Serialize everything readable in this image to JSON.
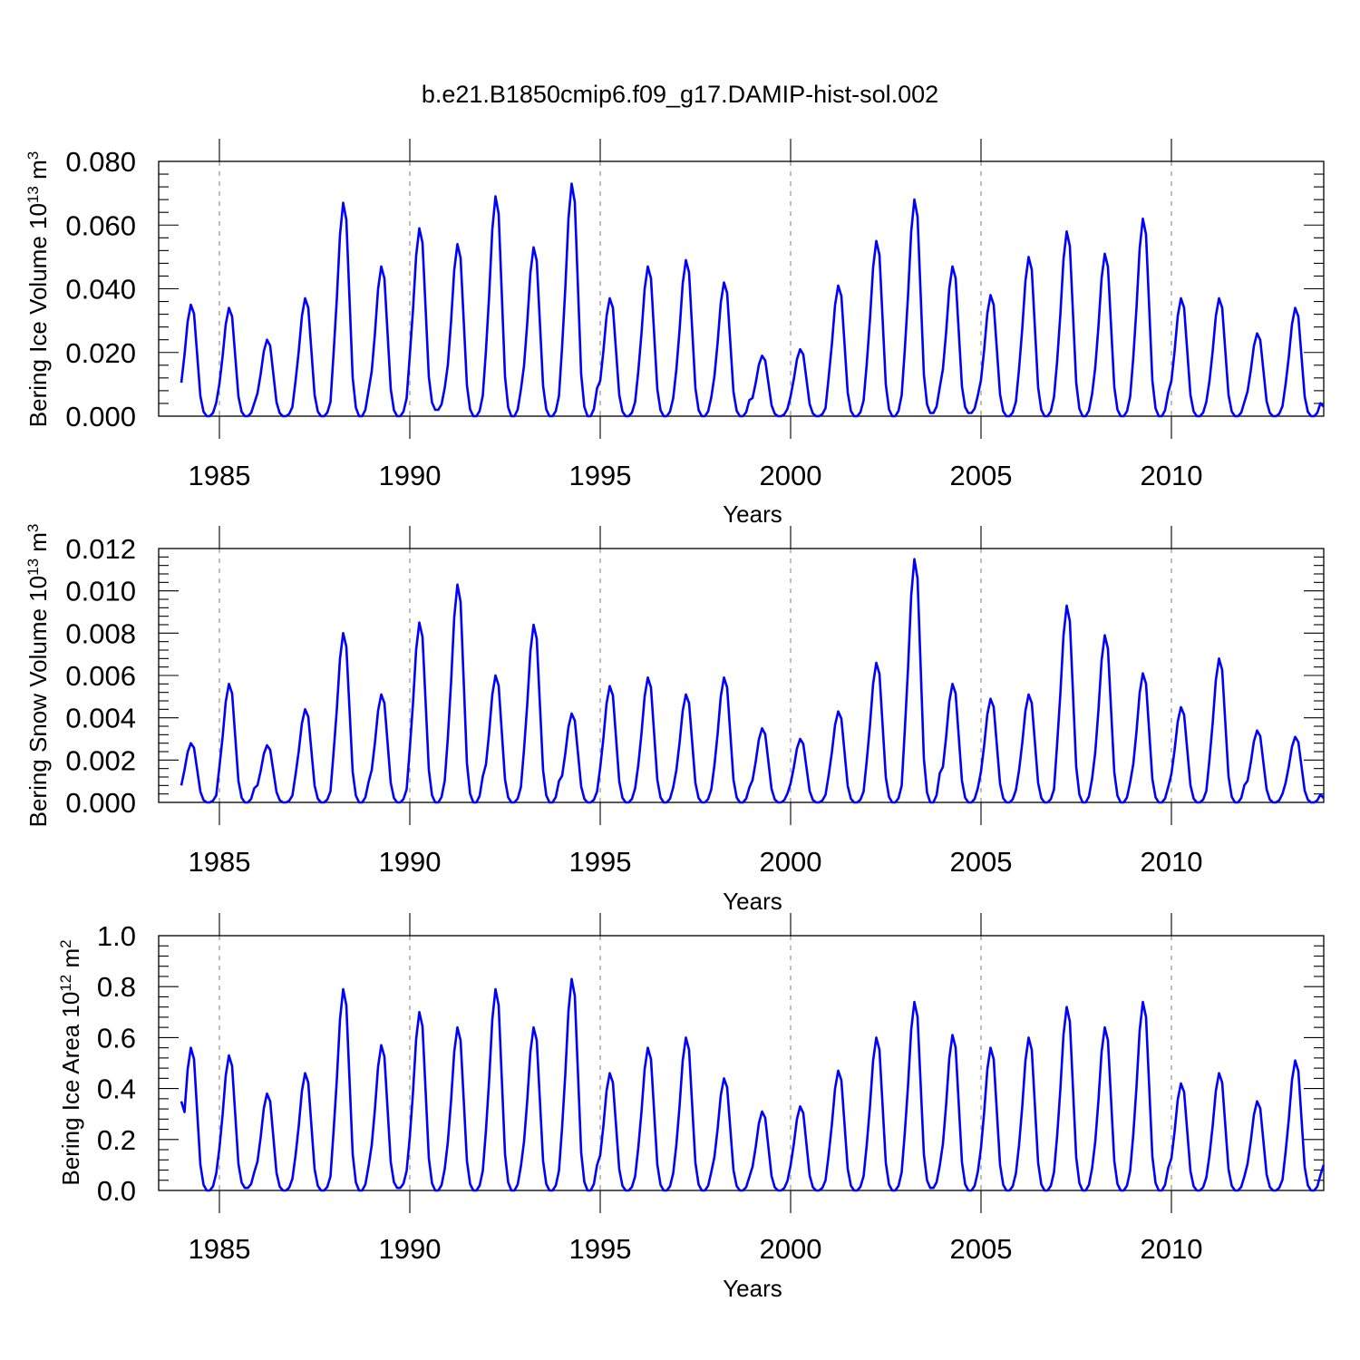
{
  "title": "b.e21.B1850cmip6.f09_g17.DAMIP-hist-sol.002",
  "series_color": "#0000ff",
  "chart_data": [
    {
      "type": "line",
      "name": "ice-volume",
      "title": "b.e21.B1850cmip6.f09_g17.DAMIP-hist-sol.002",
      "xlabel": "Years",
      "ylabel": "Bering Ice Volume",
      "ylabel_unit": "10^13 m^3",
      "xlim": [
        1984.0,
        2014.0
      ],
      "ylim": [
        0.0,
        0.08
      ],
      "grid": "dashed vertical lines at 5-year ticks",
      "xticks": [
        1985,
        1990,
        1995,
        2000,
        2005,
        2010
      ],
      "xtick_labels": [
        "1985",
        "1990",
        "1995",
        "2000",
        "2005",
        "2010"
      ],
      "yticks": [
        0.0,
        0.02,
        0.04,
        0.06,
        0.08
      ],
      "ytick_labels": [
        "0.000",
        "0.020",
        "0.040",
        "0.060",
        "0.080"
      ],
      "x_start": 1984.0,
      "x_step": 0.08333,
      "peaks": [
        0.035,
        0.034,
        0.024,
        0.037,
        0.067,
        0.047,
        0.059,
        0.054,
        0.069,
        0.053,
        0.073,
        0.037,
        0.047,
        0.049,
        0.042,
        0.019,
        0.021,
        0.041,
        0.055,
        0.068,
        0.047,
        0.038,
        0.05,
        0.058,
        0.051,
        0.062,
        0.037,
        0.037,
        0.026,
        0.034
      ],
      "troughs": [
        0.0,
        0.0,
        0.0,
        0.0,
        0.0,
        0.0,
        0.002,
        0.0,
        0.0,
        0.0,
        0.0,
        0.0,
        0.0,
        0.0,
        0.0,
        0.0,
        0.0,
        0.0,
        0.0,
        0.001,
        0.001,
        0.0,
        0.0,
        0.0,
        0.0,
        0.0,
        0.0,
        0.0,
        0.0,
        0.0
      ],
      "end_value": 0.003
    },
    {
      "type": "line",
      "name": "snow-volume",
      "xlabel": "Years",
      "ylabel": "Bering Snow Volume",
      "ylabel_unit": "10^13 m^3",
      "xlim": [
        1984.0,
        2014.0
      ],
      "ylim": [
        0.0,
        0.012
      ],
      "grid": "dashed vertical lines at 5-year ticks",
      "xticks": [
        1985,
        1990,
        1995,
        2000,
        2005,
        2010
      ],
      "xtick_labels": [
        "1985",
        "1990",
        "1995",
        "2000",
        "2005",
        "2010"
      ],
      "yticks": [
        0.0,
        0.002,
        0.004,
        0.006,
        0.008,
        0.01,
        0.012
      ],
      "ytick_labels": [
        "0.000",
        "0.002",
        "0.004",
        "0.006",
        "0.008",
        "0.010",
        "0.012"
      ],
      "x_start": 1984.0,
      "x_step": 0.08333,
      "peaks": [
        0.0028,
        0.0056,
        0.0027,
        0.0044,
        0.008,
        0.0051,
        0.0085,
        0.0103,
        0.006,
        0.0084,
        0.0042,
        0.0055,
        0.0059,
        0.0051,
        0.0059,
        0.0035,
        0.003,
        0.0043,
        0.0066,
        0.0115,
        0.0056,
        0.0049,
        0.0051,
        0.0093,
        0.0079,
        0.0061,
        0.0045,
        0.0068,
        0.0034,
        0.0031
      ],
      "troughs": [
        0.0,
        0.0,
        0.0,
        0.0,
        0.0,
        0.0,
        0.0,
        0.0,
        0.0,
        0.0,
        0.0,
        0.0,
        0.0,
        0.0,
        0.0,
        0.0,
        0.0,
        0.0,
        0.0,
        0.0,
        0.0,
        0.0,
        0.0,
        0.0,
        0.0,
        0.0,
        0.0,
        0.0,
        0.0,
        0.0
      ],
      "start_value": 0.0008,
      "end_value": 0.0002
    },
    {
      "type": "line",
      "name": "ice-area",
      "xlabel": "Years",
      "ylabel": "Bering Ice Area",
      "ylabel_unit": "10^12 m^2",
      "xlim": [
        1984.0,
        2014.0
      ],
      "ylim": [
        0.0,
        1.0
      ],
      "grid": "dashed vertical lines at 5-year ticks",
      "xticks": [
        1985,
        1990,
        1995,
        2000,
        2005,
        2010
      ],
      "xtick_labels": [
        "1985",
        "1990",
        "1995",
        "2000",
        "2005",
        "2010"
      ],
      "yticks": [
        0.0,
        0.2,
        0.4,
        0.6,
        0.8,
        1.0
      ],
      "ytick_labels": [
        "0.0",
        "0.2",
        "0.4",
        "0.6",
        "0.8",
        "1.0"
      ],
      "x_start": 1984.0,
      "x_step": 0.08333,
      "peaks": [
        0.56,
        0.53,
        0.38,
        0.46,
        0.79,
        0.57,
        0.7,
        0.64,
        0.79,
        0.64,
        0.83,
        0.46,
        0.56,
        0.6,
        0.44,
        0.31,
        0.33,
        0.47,
        0.6,
        0.74,
        0.61,
        0.56,
        0.6,
        0.72,
        0.64,
        0.74,
        0.42,
        0.46,
        0.35,
        0.51
      ],
      "troughs": [
        0.0,
        0.01,
        0.0,
        0.0,
        0.0,
        0.01,
        0.0,
        0.0,
        0.0,
        0.0,
        0.0,
        0.0,
        0.0,
        0.0,
        0.0,
        0.0,
        0.0,
        0.0,
        0.0,
        0.01,
        0.0,
        0.0,
        0.0,
        0.0,
        0.0,
        0.0,
        0.0,
        0.0,
        0.0,
        0.0
      ],
      "start_value": 0.35,
      "end_value": 0.1
    }
  ]
}
